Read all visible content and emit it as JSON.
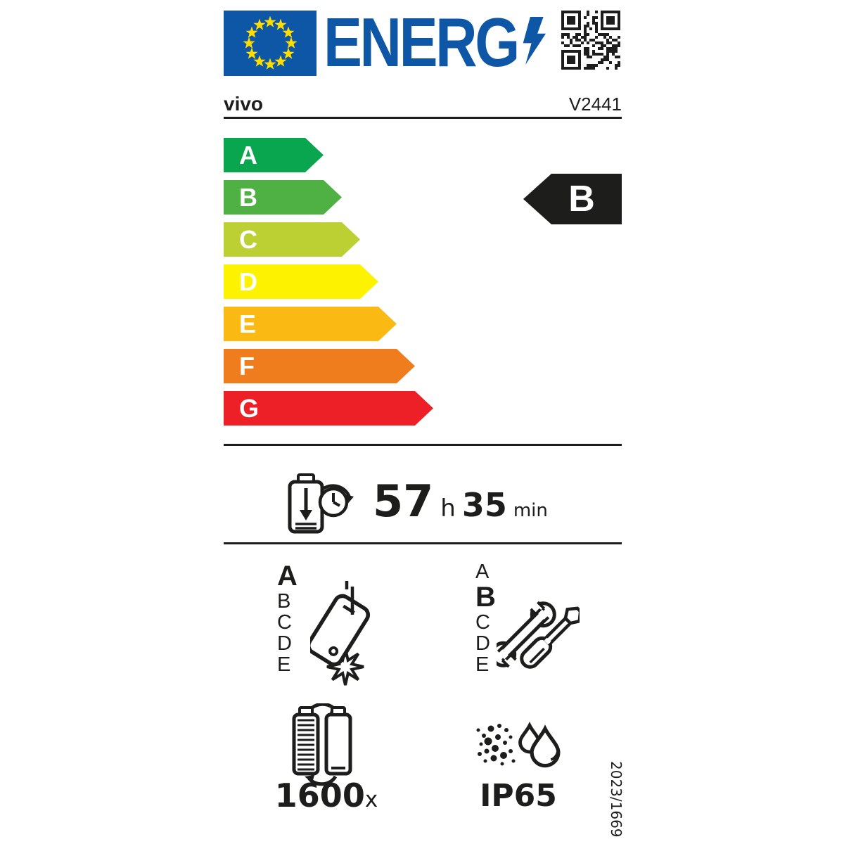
{
  "colors": {
    "eu_blue": "#0d57a6",
    "star_yellow": "#ffdd00",
    "ink": "#1d1d1b"
  },
  "header": {
    "logo_text": "ENERG"
  },
  "product": {
    "brand": "vivo",
    "model": "V2441"
  },
  "efficiency_scale": {
    "classes": [
      {
        "letter": "A",
        "color": "#0aa64f"
      },
      {
        "letter": "B",
        "color": "#4fb043"
      },
      {
        "letter": "C",
        "color": "#bccf33"
      },
      {
        "letter": "D",
        "color": "#fdf200"
      },
      {
        "letter": "E",
        "color": "#fbb914"
      },
      {
        "letter": "F",
        "color": "#f07d1d"
      },
      {
        "letter": "G",
        "color": "#ec2026"
      }
    ],
    "rating": "B",
    "rating_bg": "#1d1d1b"
  },
  "battery_endurance": {
    "hours": "57",
    "hours_unit": "h",
    "minutes": "35",
    "minutes_unit": "min"
  },
  "drop_resistance": {
    "class": "A",
    "scale": [
      "A",
      "B",
      "C",
      "D",
      "E"
    ]
  },
  "repairability": {
    "class": "B",
    "scale": [
      "A",
      "B",
      "C",
      "D",
      "E"
    ]
  },
  "battery_cycles": {
    "value": "1600",
    "unit": "x"
  },
  "ingress_protection": {
    "rating": "IP65"
  },
  "regulation": "2023/1669"
}
